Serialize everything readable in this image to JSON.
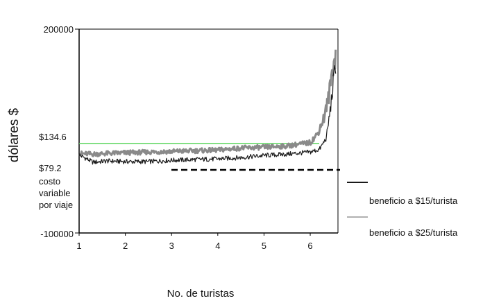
{
  "chart_data": {
    "type": "line",
    "title": "",
    "xlabel": "No. de turistas",
    "ylabel": "dólares $",
    "x_ticks": [
      "1",
      "2",
      "3",
      "4",
      "5",
      "6"
    ],
    "y_tick_labels": {
      "top": "200000",
      "mid": "$134.6",
      "low": "$79.2",
      "bottom": "-100000"
    },
    "y_note_lines": [
      "costo",
      "variable",
      "por viaje"
    ],
    "ylim": [
      -100000,
      200000
    ],
    "reference_levels": [
      {
        "label": "$134.6",
        "value": 134.6
      },
      {
        "label": "$79.2",
        "value": 79.2
      }
    ],
    "series": [
      {
        "name": "beneficio a $15/turista",
        "color": "#1a1a1a",
        "x": [
          1.0,
          1.3,
          1.6,
          2.0,
          2.5,
          3.0,
          3.5,
          4.0,
          4.5,
          5.0,
          5.5,
          6.0,
          6.2,
          6.35,
          6.45,
          6.5,
          6.55
        ],
        "y": [
          15000,
          4000,
          6000,
          5000,
          5000,
          7000,
          8000,
          9000,
          11000,
          14000,
          16000,
          19000,
          23000,
          40000,
          90000,
          120000,
          150000
        ]
      },
      {
        "name": "beneficio a $25/turista",
        "color": "#8a8a8a",
        "x": [
          1.0,
          1.3,
          1.6,
          2.0,
          2.5,
          3.0,
          3.5,
          4.0,
          4.5,
          5.0,
          5.5,
          6.0,
          6.15,
          6.3,
          6.4,
          6.5,
          6.55
        ],
        "y": [
          17000,
          16000,
          17000,
          18000,
          19000,
          20000,
          21000,
          22000,
          25000,
          26000,
          28000,
          33000,
          45000,
          70000,
          100000,
          150000,
          160000
        ]
      }
    ],
    "legend_position": "right",
    "grid": false
  },
  "colors": {
    "green_line": "#59d65c",
    "dashed_line": "#000000"
  }
}
